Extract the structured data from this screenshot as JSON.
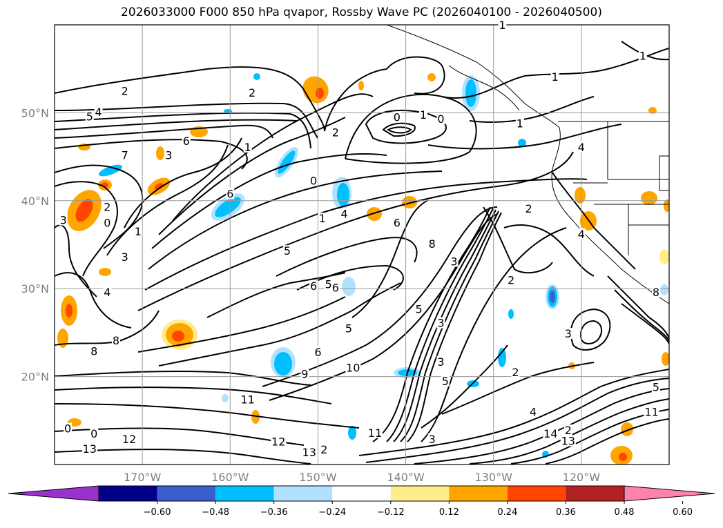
{
  "title": "2026033000 F000 850 hPa qvapor, Rossby Wave PC (2026040100 - 2026040500)",
  "map": {
    "lon_range": [
      -180,
      -110
    ],
    "lat_range": [
      10,
      60
    ],
    "lat_ticks": [
      "50°N",
      "40°N",
      "30°N",
      "20°N"
    ],
    "lat_values": [
      50,
      40,
      30,
      20
    ],
    "lon_ticks": [
      "170°W",
      "160°W",
      "150°W",
      "140°W",
      "130°W",
      "120°W"
    ],
    "lon_values": [
      -170,
      -160,
      -150,
      -140,
      -130,
      -120
    ]
  },
  "colorbar": {
    "ticks": [
      "−0.60",
      "−0.48",
      "−0.36",
      "−0.24",
      "−0.12",
      "0.12",
      "0.24",
      "0.36",
      "0.48",
      "0.60"
    ],
    "colors": [
      "#9932CC",
      "#00008B",
      "#3A5FCD",
      "#00BFFF",
      "#B0E2FF",
      "#FFFFFF",
      "#FFEC8B",
      "#FFA500",
      "#FF4500",
      "#B22222",
      "#FF82AB"
    ]
  },
  "contour_labels": [
    {
      "text": "1",
      "lon": -129,
      "lat": 59.7
    },
    {
      "text": "1",
      "lon": -113,
      "lat": 56.2
    },
    {
      "text": "1",
      "lon": -123,
      "lat": 53.8
    },
    {
      "text": "2",
      "lon": -172,
      "lat": 52.2
    },
    {
      "text": "2",
      "lon": -157.5,
      "lat": 52
    },
    {
      "text": "5",
      "lon": -176,
      "lat": 49.3
    },
    {
      "text": "4",
      "lon": -175,
      "lat": 49.8
    },
    {
      "text": "0",
      "lon": -141,
      "lat": 49.2
    },
    {
      "text": "1",
      "lon": -138,
      "lat": 49.5
    },
    {
      "text": "0",
      "lon": -136,
      "lat": 49
    },
    {
      "text": "1",
      "lon": -127,
      "lat": 48.5
    },
    {
      "text": "6",
      "lon": -165,
      "lat": 46.5
    },
    {
      "text": "1",
      "lon": -158,
      "lat": 45.8
    },
    {
      "text": "2",
      "lon": -148,
      "lat": 47.5
    },
    {
      "text": "4",
      "lon": -120,
      "lat": 45.8
    },
    {
      "text": "7",
      "lon": -172,
      "lat": 44.9
    },
    {
      "text": "3",
      "lon": -167,
      "lat": 44.9
    },
    {
      "text": "0",
      "lon": -150.5,
      "lat": 42
    },
    {
      "text": "6",
      "lon": -160,
      "lat": 40.5
    },
    {
      "text": "2",
      "lon": -174,
      "lat": 39
    },
    {
      "text": "1",
      "lon": -149.5,
      "lat": 37.7
    },
    {
      "text": "4",
      "lon": -147,
      "lat": 38.2
    },
    {
      "text": "3",
      "lon": -179,
      "lat": 37.5
    },
    {
      "text": "0",
      "lon": -174,
      "lat": 37.2
    },
    {
      "text": "1",
      "lon": -170.5,
      "lat": 36.2
    },
    {
      "text": "6",
      "lon": -141,
      "lat": 37.2
    },
    {
      "text": "2",
      "lon": -126,
      "lat": 38.8
    },
    {
      "text": "4",
      "lon": -120,
      "lat": 35.9
    },
    {
      "text": "8",
      "lon": -137,
      "lat": 34.8
    },
    {
      "text": "5",
      "lon": -153.5,
      "lat": 34
    },
    {
      "text": "3",
      "lon": -172,
      "lat": 33.3
    },
    {
      "text": "3",
      "lon": -134.5,
      "lat": 32.8
    },
    {
      "text": "2",
      "lon": -128,
      "lat": 30.7
    },
    {
      "text": "6",
      "lon": -150.5,
      "lat": 30
    },
    {
      "text": "5",
      "lon": -148.8,
      "lat": 30.2
    },
    {
      "text": "6",
      "lon": -148,
      "lat": 29.8
    },
    {
      "text": "4",
      "lon": -174,
      "lat": 29.3
    },
    {
      "text": "8",
      "lon": -111.5,
      "lat": 29.3
    },
    {
      "text": "5",
      "lon": -138.5,
      "lat": 27.4
    },
    {
      "text": "3",
      "lon": -136,
      "lat": 25.8
    },
    {
      "text": "5",
      "lon": -146.5,
      "lat": 25.2
    },
    {
      "text": "3",
      "lon": -121.5,
      "lat": 24.6
    },
    {
      "text": "8",
      "lon": -175.5,
      "lat": 22.6
    },
    {
      "text": "8",
      "lon": -173,
      "lat": 23.8
    },
    {
      "text": "6",
      "lon": -150,
      "lat": 22.5
    },
    {
      "text": "3",
      "lon": -136,
      "lat": 21.4
    },
    {
      "text": "2",
      "lon": -127.5,
      "lat": 20.2
    },
    {
      "text": "10",
      "lon": -146,
      "lat": 20.7
    },
    {
      "text": "9",
      "lon": -151.5,
      "lat": 20
    },
    {
      "text": "5",
      "lon": -135.5,
      "lat": 19.2
    },
    {
      "text": "11",
      "lon": -158,
      "lat": 17.1
    },
    {
      "text": "5",
      "lon": -111.5,
      "lat": 18.5
    },
    {
      "text": "4",
      "lon": -125.5,
      "lat": 15.7
    },
    {
      "text": "11",
      "lon": -112,
      "lat": 15.7
    },
    {
      "text": "0",
      "lon": -178.5,
      "lat": 13.8
    },
    {
      "text": "0",
      "lon": -175.5,
      "lat": 13.2
    },
    {
      "text": "12",
      "lon": -171.5,
      "lat": 12.6
    },
    {
      "text": "12",
      "lon": -154.5,
      "lat": 12.3
    },
    {
      "text": "13",
      "lon": -176,
      "lat": 11.5
    },
    {
      "text": "11",
      "lon": -143.5,
      "lat": 13.3
    },
    {
      "text": "3",
      "lon": -137,
      "lat": 12.6
    },
    {
      "text": "14",
      "lon": -123.5,
      "lat": 13.2
    },
    {
      "text": "2",
      "lon": -121.5,
      "lat": 13.6
    },
    {
      "text": "13",
      "lon": -121.5,
      "lat": 12.4
    },
    {
      "text": "13",
      "lon": -151,
      "lat": 11.1
    },
    {
      "text": "2",
      "lon": -149.3,
      "lat": 11.4
    }
  ]
}
